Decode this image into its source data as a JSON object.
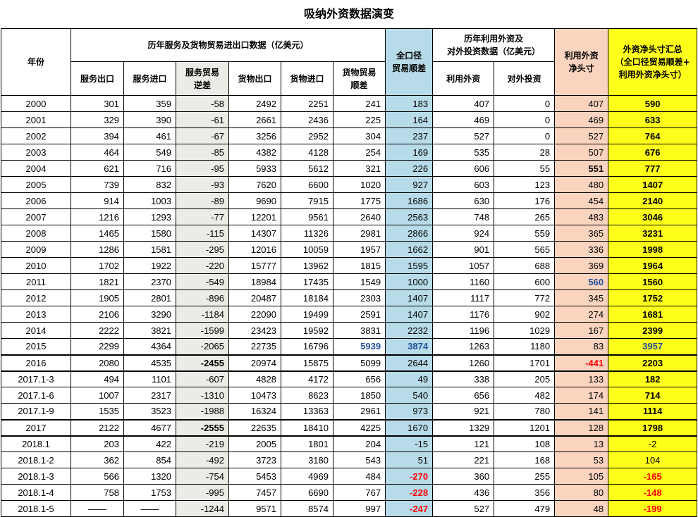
{
  "title": "吸纳外资数据演变",
  "headers": {
    "year": "年份",
    "trade_group": "历年服务及货物贸易进出口数据（亿美元）",
    "svc_export": "服务出口",
    "svc_import": "服务进口",
    "svc_deficit_1": "服务贸易",
    "svc_deficit_2": "逆差",
    "goods_export": "货物出口",
    "goods_import": "货物进口",
    "goods_surplus_1": "货物贸易",
    "goods_surplus_2": "顺差",
    "total_1": "全口径",
    "total_2": "贸易顺差",
    "fdi_group_1": "历年利用外资及",
    "fdi_group_2": "对外投资数据（亿美元）",
    "fdi_in": "利用外资",
    "fdi_out": "对外投资",
    "net_1": "利用外资",
    "net_2": "净头寸",
    "sum_1": "外资净头寸汇总",
    "sum_2": "（全口径贸易顺差+",
    "sum_3": "利用外资净头寸）"
  },
  "rows": [
    [
      "2000",
      "301",
      "359",
      "-58",
      "2492",
      "2251",
      "241",
      "183",
      "407",
      "0",
      "407",
      "590"
    ],
    [
      "2001",
      "329",
      "390",
      "-61",
      "2661",
      "2436",
      "225",
      "164",
      "469",
      "0",
      "469",
      "633"
    ],
    [
      "2002",
      "394",
      "461",
      "-67",
      "3256",
      "2952",
      "304",
      "237",
      "527",
      "0",
      "527",
      "764"
    ],
    [
      "2003",
      "464",
      "549",
      "-85",
      "4382",
      "4128",
      "254",
      "169",
      "535",
      "28",
      "507",
      "676"
    ],
    [
      "2004",
      "621",
      "716",
      "-95",
      "5933",
      "5612",
      "321",
      "226",
      "606",
      "55",
      "551",
      "777"
    ],
    [
      "2005",
      "739",
      "832",
      "-93",
      "7620",
      "6600",
      "1020",
      "927",
      "603",
      "123",
      "480",
      "1407"
    ],
    [
      "2006",
      "914",
      "1003",
      "-89",
      "9690",
      "7915",
      "1775",
      "1686",
      "630",
      "176",
      "454",
      "2140"
    ],
    [
      "2007",
      "1216",
      "1293",
      "-77",
      "12201",
      "9561",
      "2640",
      "2563",
      "748",
      "265",
      "483",
      "3046"
    ],
    [
      "2008",
      "1465",
      "1580",
      "-115",
      "14307",
      "11326",
      "2981",
      "2866",
      "924",
      "559",
      "365",
      "3231"
    ],
    [
      "2009",
      "1286",
      "1581",
      "-295",
      "12016",
      "10059",
      "1957",
      "1662",
      "901",
      "565",
      "336",
      "1998"
    ],
    [
      "2010",
      "1702",
      "1922",
      "-220",
      "15777",
      "13962",
      "1815",
      "1595",
      "1057",
      "688",
      "369",
      "1964"
    ],
    [
      "2011",
      "1821",
      "2370",
      "-549",
      "18984",
      "17435",
      "1549",
      "1000",
      "1160",
      "600",
      "560",
      "1560"
    ],
    [
      "2012",
      "1905",
      "2801",
      "-896",
      "20487",
      "18184",
      "2303",
      "1407",
      "1117",
      "772",
      "345",
      "1752"
    ],
    [
      "2013",
      "2106",
      "3290",
      "-1184",
      "22090",
      "19499",
      "2591",
      "1407",
      "1176",
      "902",
      "274",
      "1681"
    ],
    [
      "2014",
      "2222",
      "3821",
      "-1599",
      "23423",
      "19592",
      "3831",
      "2232",
      "1196",
      "1029",
      "167",
      "2399"
    ],
    [
      "2015",
      "2299",
      "4364",
      "-2065",
      "22735",
      "16796",
      "5939",
      "3874",
      "1263",
      "1180",
      "83",
      "3957"
    ],
    [
      "2016",
      "2080",
      "4535",
      "-2455",
      "20974",
      "15875",
      "5099",
      "2644",
      "1260",
      "1701",
      "-441",
      "2203"
    ],
    [
      "2017.1-3",
      "494",
      "1101",
      "-607",
      "4828",
      "4172",
      "656",
      "49",
      "338",
      "205",
      "133",
      "182"
    ],
    [
      "2017.1-6",
      "1007",
      "2317",
      "-1310",
      "10473",
      "8623",
      "1850",
      "540",
      "656",
      "482",
      "174",
      "714"
    ],
    [
      "2017.1-9",
      "1535",
      "3523",
      "-1988",
      "16324",
      "13363",
      "2961",
      "973",
      "921",
      "780",
      "141",
      "1114"
    ],
    [
      "2017",
      "2122",
      "4677",
      "-2555",
      "22635",
      "18410",
      "4225",
      "1670",
      "1329",
      "1201",
      "128",
      "1798"
    ],
    [
      "2018.1",
      "203",
      "422",
      "-219",
      "2005",
      "1801",
      "204",
      "-15",
      "121",
      "108",
      "13",
      "-2"
    ],
    [
      "2018.1-2",
      "362",
      "854",
      "-492",
      "3723",
      "3180",
      "543",
      "51",
      "221",
      "168",
      "53",
      "104"
    ],
    [
      "2018.1-3",
      "566",
      "1320",
      "-754",
      "5453",
      "4969",
      "484",
      "-270",
      "360",
      "255",
      "105",
      "-165"
    ],
    [
      "2018.1-4",
      "758",
      "1753",
      "-995",
      "7457",
      "6690",
      "767",
      "-228",
      "436",
      "356",
      "80",
      "-148"
    ],
    [
      "2018.1-5",
      "——",
      "——",
      "-1244",
      "9571",
      "8574",
      "997",
      "-247",
      "527",
      "479",
      "48",
      "-199"
    ]
  ],
  "colors": {
    "services_deficit_bg": "#ecebe6",
    "total_surplus_bg": "#b7dbe8",
    "net_position_bg": "#fbd4c0",
    "summary_bg": "#fffd1a",
    "negative_highlight": "#ff0000",
    "blue_highlight": "#1f4e9c"
  }
}
